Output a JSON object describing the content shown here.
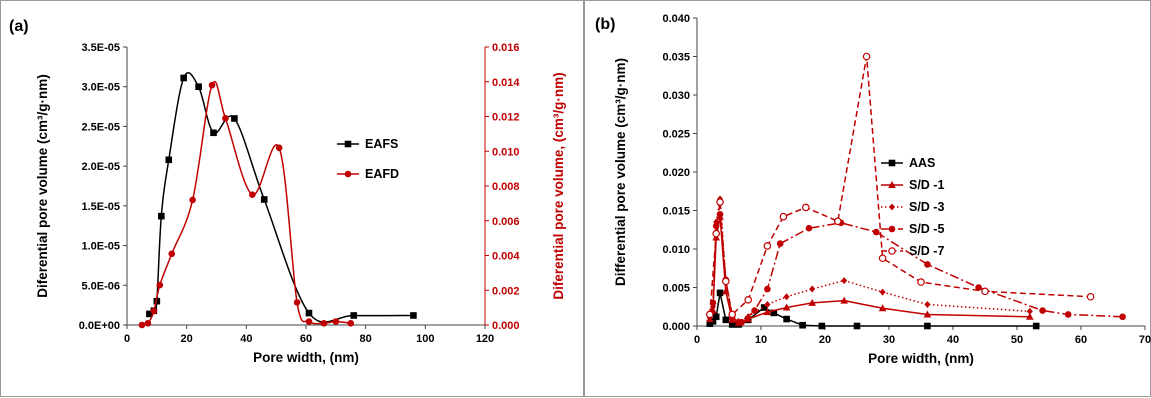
{
  "chart_data": [
    {
      "type": "line",
      "panel_label": "(a)",
      "xlabel": "Pore width, (nm)",
      "ylabel": "Diferential pore volume (cm³/g·nm)",
      "y2label": "Diferential pore volume, (cm³/g·nm)",
      "xlim": [
        0,
        120
      ],
      "ylim": [
        0,
        3.5e-05
      ],
      "y2lim": [
        0,
        0.016
      ],
      "xticks": [
        "0",
        "20",
        "40",
        "60",
        "80",
        "100",
        "120"
      ],
      "yticks": [
        "0.0E+00",
        "5.0E-06",
        "1.0E-05",
        "1.5E-05",
        "2.0E-05",
        "2.5E-05",
        "3.0E-05",
        "3.5E-05"
      ],
      "y2ticks": [
        "0.000",
        "0.002",
        "0.004",
        "0.006",
        "0.008",
        "0.010",
        "0.012",
        "0.014",
        "0.016"
      ],
      "grid": false,
      "legend_position": "right",
      "series": [
        {
          "name": "EAFS",
          "axis": "left",
          "color": "#000000",
          "marker": "square",
          "dash": "none",
          "x": [
            7.5,
            9.0,
            10.0,
            11.5,
            14.0,
            19.0,
            24.0,
            29.0,
            36.0,
            46.0,
            61.0,
            76.0,
            96.0
          ],
          "y": [
            1.4e-06,
            1.8e-06,
            3e-06,
            1.37e-05,
            2.08e-05,
            3.11e-05,
            3e-05,
            2.42e-05,
            2.6e-05,
            1.58e-05,
            1.5e-06,
            1.2e-06,
            1.2e-06
          ]
        },
        {
          "name": "EAFD",
          "axis": "right",
          "color": "#c00000",
          "marker": "circle",
          "dash": "none",
          "x": [
            5.0,
            7.0,
            9.0,
            11.0,
            15.0,
            22.0,
            28.5,
            33.0,
            42.0,
            51.0,
            57.0,
            61.0,
            66.0,
            70.0,
            75.0
          ],
          "y": [
            0.0,
            0.0001,
            0.0008,
            0.0023,
            0.0041,
            0.0072,
            0.0138,
            0.0119,
            0.0075,
            0.0102,
            0.0013,
            0.0002,
            0.0001,
            0.0002,
            0.0001
          ]
        }
      ]
    },
    {
      "type": "line",
      "panel_label": "(b)",
      "xlabel": "Pore width, (nm)",
      "ylabel": "Differential pore volume (cm³/g·nm)",
      "xlim": [
        0,
        70
      ],
      "ylim": [
        0,
        0.04
      ],
      "xticks": [
        "0",
        "10",
        "20",
        "30",
        "40",
        "50",
        "60",
        "70"
      ],
      "yticks": [
        "0.000",
        "0.005",
        "0.010",
        "0.015",
        "0.020",
        "0.025",
        "0.030",
        "0.035",
        "0.040"
      ],
      "grid": false,
      "legend_position": "right",
      "series": [
        {
          "name": "AAS",
          "color": "#000000",
          "marker": "square",
          "dash": "none",
          "x": [
            2.0,
            2.5,
            3.0,
            3.6,
            4.5,
            5.5,
            6.5,
            8.0,
            10.5,
            12.0,
            14.0,
            16.5,
            19.5,
            25.0,
            36.0,
            53.0
          ],
          "y": [
            0.0003,
            0.0006,
            0.0012,
            0.0043,
            0.0008,
            0.0002,
            0.0002,
            0.0008,
            0.0024,
            0.0017,
            0.0009,
            0.0001,
            0.0,
            0.0,
            0.0,
            0.0
          ]
        },
        {
          "name": "S/D -1",
          "color": "#c00000",
          "marker": "triangle",
          "dash": "none",
          "x": [
            2.0,
            2.5,
            3.0,
            3.6,
            4.5,
            5.5,
            6.5,
            8.0,
            11.0,
            14.0,
            18.0,
            23.0,
            29.0,
            36.0,
            52.0
          ],
          "y": [
            0.0009,
            0.002,
            0.0115,
            0.0142,
            0.0045,
            0.0008,
            0.0004,
            0.0009,
            0.0018,
            0.0024,
            0.003,
            0.0033,
            0.0023,
            0.0015,
            0.0012
          ]
        },
        {
          "name": "S/D -3",
          "color": "#c00000",
          "marker": "diamond",
          "dash": "dot",
          "x": [
            2.0,
            2.5,
            3.0,
            3.6,
            4.5,
            5.5,
            6.5,
            8.0,
            11.0,
            14.0,
            18.0,
            23.0,
            29.0,
            36.0,
            52.0
          ],
          "y": [
            0.0011,
            0.0025,
            0.0135,
            0.0165,
            0.006,
            0.0012,
            0.0006,
            0.0012,
            0.0028,
            0.0038,
            0.0048,
            0.0059,
            0.0044,
            0.0028,
            0.0019
          ]
        },
        {
          "name": "S/D -5",
          "color": "#c00000",
          "marker": "circle",
          "dash": "dashdot",
          "x": [
            2.0,
            2.5,
            3.0,
            3.6,
            4.5,
            5.5,
            7.0,
            9.0,
            11.0,
            13.0,
            17.5,
            22.5,
            28.0,
            36.0,
            44.0,
            54.0,
            58.0,
            66.5
          ],
          "y": [
            0.0015,
            0.003,
            0.013,
            0.0145,
            0.006,
            0.001,
            0.0005,
            0.002,
            0.0048,
            0.0107,
            0.0127,
            0.0134,
            0.0122,
            0.008,
            0.005,
            0.002,
            0.0015,
            0.0012
          ]
        },
        {
          "name": "S/D -7",
          "color": "#c00000",
          "marker": "circle-open",
          "dash": "dash",
          "x": [
            2.0,
            3.0,
            3.6,
            4.5,
            5.5,
            8.0,
            11.0,
            13.5,
            17.0,
            22.0,
            26.5,
            29.0,
            35.0,
            45.0,
            61.5
          ],
          "y": [
            0.0015,
            0.012,
            0.0161,
            0.0058,
            0.0015,
            0.0034,
            0.0104,
            0.0142,
            0.0154,
            0.0136,
            0.035,
            0.0088,
            0.0057,
            0.0045,
            0.0038
          ]
        }
      ]
    }
  ]
}
